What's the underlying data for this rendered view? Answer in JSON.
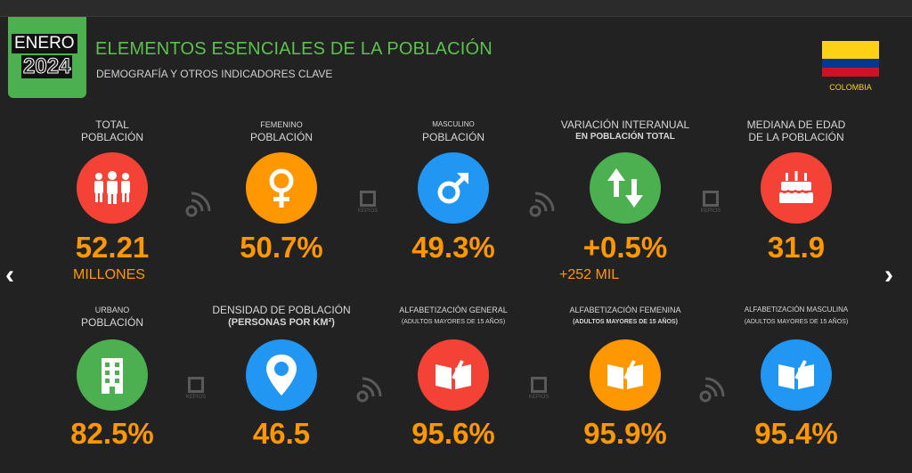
{
  "header": {
    "month": "ENERO",
    "year": "2024",
    "title": "ELEMENTOS ESENCIALES DE LA POBLACIÓN",
    "subtitle": "DEMOGRAFÍA Y OTROS INDICADORES CLAVE",
    "country": "COLOMBIA"
  },
  "watermark": "KEPIOS",
  "colors": {
    "green": "#4caf50",
    "orange": "#ff9800",
    "red": "#f44336",
    "blue": "#2196f3"
  },
  "row1": [
    {
      "line1": "TOTAL",
      "line2": "POBLACIÓN",
      "value": "52.21",
      "extra": "MILLONES",
      "icon": "people-icon"
    },
    {
      "line1": "FEMENINO",
      "line2": "POBLACIÓN",
      "value": "50.7%",
      "icon": "female-icon"
    },
    {
      "line1": "MASCULINO",
      "line2": "POBLACIÓN",
      "value": "49.3%",
      "icon": "male-icon"
    },
    {
      "line1": "VARIACIÓN INTERANUAL",
      "line2": "EN POBLACIÓN TOTAL",
      "value": "+0.5%",
      "extra": "+252 MIL",
      "icon": "updown-arrows-icon"
    },
    {
      "line1": "MEDIANA DE EDAD",
      "line2": "DE LA POBLACIÓN",
      "value": "31.9",
      "icon": "birthday-cake-icon"
    }
  ],
  "row2": [
    {
      "line1": "URBANO",
      "line2": "POBLACIÓN",
      "value": "82.5%",
      "icon": "building-icon"
    },
    {
      "line1": "DENSIDAD DE POBLACIÓN",
      "line2": "(PERSONAS POR KM²)",
      "value": "46.5",
      "icon": "location-pin-icon"
    },
    {
      "line1": "ALFABETIZACIÓN GENERAL",
      "line2": "(ADULTOS MAYORES DE 15 AÑOS)",
      "value": "95.6%",
      "icon": "book-icon"
    },
    {
      "line1": "ALFABETIZACIÓN FEMENINA",
      "line2": "(ADULTOS MAYORES DE 15 AÑOS)",
      "value": "95.9%",
      "icon": "book-icon"
    },
    {
      "line1": "ALFABETIZACIÓN MASCULINA",
      "line2": "(ADULTOS MAYORES DE 15 AÑOS)",
      "value": "95.4%",
      "icon": "book-icon"
    }
  ]
}
